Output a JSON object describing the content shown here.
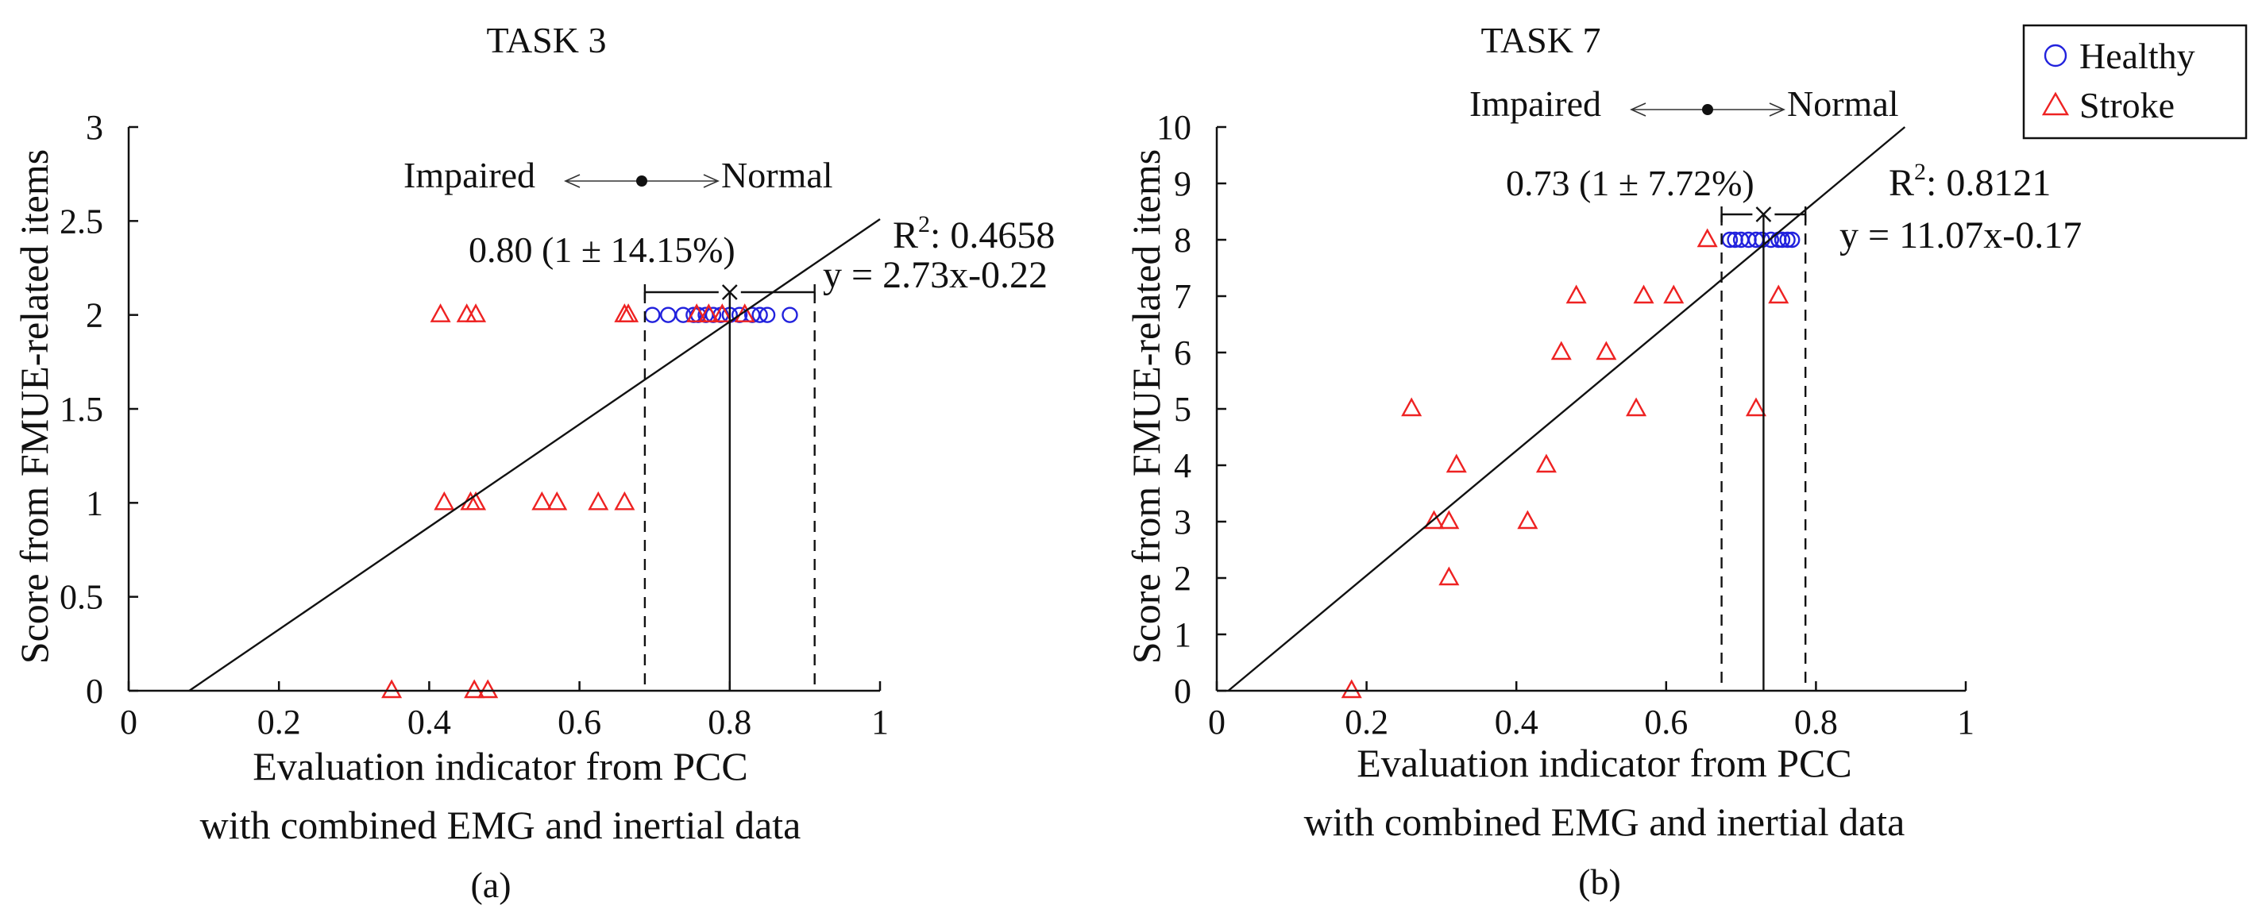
{
  "legend": {
    "entries": [
      {
        "name": "Healthy",
        "marker": "circle",
        "color": "#2222dd"
      },
      {
        "name": "Stroke",
        "marker": "triangle",
        "color": "#ee2222"
      }
    ]
  },
  "chart_data": [
    {
      "type": "scatter",
      "title": "TASK 3",
      "xlabel_lines": [
        "Evaluation indicator from PCC",
        "with combined EMG and inertial data"
      ],
      "ylabel": "Score from FMUE-related items",
      "caption": "(a)",
      "xlim": [
        0,
        1
      ],
      "ylim": [
        0,
        3
      ],
      "xticks": [
        0,
        0.2,
        0.4,
        0.6,
        0.8,
        1
      ],
      "xtick_labels": [
        "0",
        "0.2",
        "0.4",
        "0.6",
        "0.8",
        "1"
      ],
      "yticks": [
        0,
        0.5,
        1,
        1.5,
        2,
        2.5,
        3
      ],
      "ytick_labels": [
        "0",
        "0.5",
        "1",
        "1.5",
        "2",
        "2.5",
        "3"
      ],
      "grid": false,
      "fit": {
        "slope": 2.73,
        "intercept": -0.22,
        "r2_label": "R",
        "r2_sup": "2",
        "r2_value": ": 0.4658",
        "equation": "y = 2.73x-0.22"
      },
      "band": {
        "mean": 0.8,
        "low": 0.687,
        "high": 0.913,
        "label": "0.80 (1 ± 14.15%)"
      },
      "direction": {
        "left": "Impaired",
        "right": "Normal"
      },
      "series": [
        {
          "name": "Healthy",
          "marker": "circle",
          "color": "#2222dd",
          "x": [
            0.697,
            0.718,
            0.738,
            0.752,
            0.758,
            0.768,
            0.778,
            0.788,
            0.8,
            0.813,
            0.83,
            0.84,
            0.85,
            0.88
          ],
          "y": [
            2,
            2,
            2,
            2,
            2,
            2,
            2,
            2,
            2,
            2,
            2,
            2,
            2,
            2
          ]
        },
        {
          "name": "Stroke",
          "marker": "triangle",
          "color": "#ee2222",
          "x": [
            0.415,
            0.45,
            0.462,
            0.66,
            0.665,
            0.756,
            0.772,
            0.79,
            0.82,
            0.42,
            0.455,
            0.462,
            0.55,
            0.57,
            0.625,
            0.66,
            0.35,
            0.46,
            0.478
          ],
          "y": [
            2,
            2,
            2,
            2,
            2,
            2,
            2,
            2,
            2,
            1,
            1,
            1,
            1,
            1,
            1,
            1,
            0,
            0,
            0
          ]
        }
      ]
    },
    {
      "type": "scatter",
      "title": "TASK 7",
      "xlabel_lines": [
        "Evaluation indicator from PCC",
        "with combined EMG and inertial data"
      ],
      "ylabel": "Score from FMUE-related items",
      "caption": "(b)",
      "xlim": [
        0,
        1
      ],
      "ylim": [
        0,
        10
      ],
      "xticks": [
        0,
        0.2,
        0.4,
        0.6,
        0.8,
        1
      ],
      "xtick_labels": [
        "0",
        "0.2",
        "0.4",
        "0.6",
        "0.8",
        "1"
      ],
      "yticks": [
        0,
        1,
        2,
        3,
        4,
        5,
        6,
        7,
        8,
        9,
        10
      ],
      "ytick_labels": [
        "0",
        "1",
        "2",
        "3",
        "4",
        "5",
        "6",
        "7",
        "8",
        "9",
        "10"
      ],
      "grid": false,
      "fit": {
        "slope": 11.07,
        "intercept": -0.17,
        "r2_label": "R",
        "r2_sup": "2",
        "r2_value": ": 0.8121",
        "equation": "y = 11.07x-0.17"
      },
      "band": {
        "mean": 0.73,
        "low": 0.674,
        "high": 0.786,
        "label": "0.73 (1 ± 7.72%)"
      },
      "direction": {
        "left": "Impaired",
        "right": "Normal"
      },
      "series": [
        {
          "name": "Healthy",
          "marker": "circle",
          "color": "#2222dd",
          "x": [
            0.685,
            0.692,
            0.7,
            0.71,
            0.72,
            0.728,
            0.74,
            0.75,
            0.755,
            0.762,
            0.768
          ],
          "y": [
            8,
            8,
            8,
            8,
            8,
            8,
            8,
            8,
            8,
            8,
            8
          ]
        },
        {
          "name": "Stroke",
          "marker": "triangle",
          "color": "#ee2222",
          "x": [
            0.655,
            0.48,
            0.57,
            0.61,
            0.75,
            0.46,
            0.52,
            0.26,
            0.56,
            0.72,
            0.32,
            0.44,
            0.29,
            0.31,
            0.415,
            0.31,
            0.18
          ],
          "y": [
            8,
            7,
            7,
            7,
            7,
            6,
            6,
            5,
            5,
            5,
            4,
            4,
            3,
            3,
            3,
            2,
            0
          ]
        }
      ]
    }
  ]
}
